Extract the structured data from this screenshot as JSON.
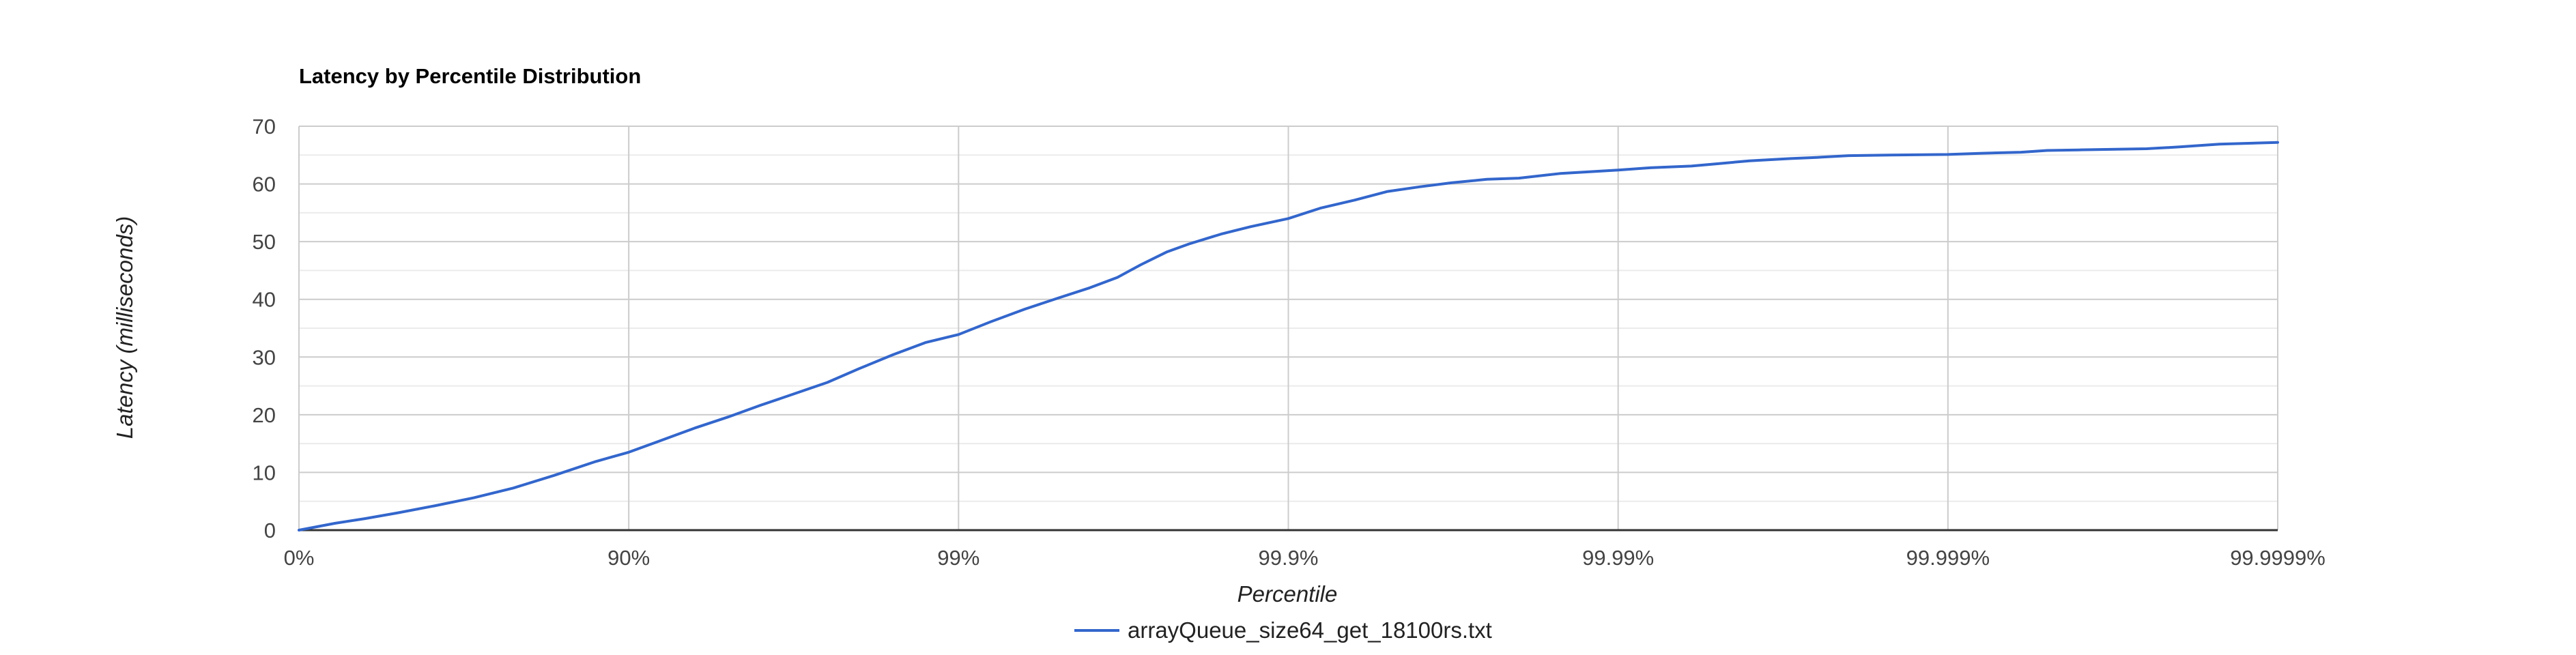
{
  "chart_data": {
    "type": "line",
    "title": "Latency by Percentile Distribution",
    "xlabel": "Percentile",
    "ylabel": "Latency (milliseconds)",
    "x_scale": "log-percentile (each tick = one more nine)",
    "x_ticks": [
      "0%",
      "90%",
      "99%",
      "99.9%",
      "99.99%",
      "99.999%",
      "99.9999%"
    ],
    "y_ticks": [
      "0",
      "10",
      "20",
      "30",
      "40",
      "50",
      "60",
      "70"
    ],
    "ylim": [
      0,
      70
    ],
    "grid": true,
    "minor_gridlines": true,
    "legend_position": "bottom",
    "series": [
      {
        "name": "arrayQueue_size64_get_18100rs.txt",
        "color": "#3366cc",
        "x": [
          0,
          22.38,
          36.9,
          49.88,
          61.1,
          70.49,
          77.61,
          83.18,
          87.41,
          90.0,
          91.8,
          93.7,
          95.0,
          96.0,
          96.84,
          97.5,
          98.0,
          98.42,
          98.74,
          99.0,
          99.2,
          99.37,
          99.5,
          99.6,
          99.67,
          99.72,
          99.766,
          99.8,
          99.84,
          99.87,
          99.9,
          99.92,
          99.937,
          99.95,
          99.96,
          99.968,
          99.975,
          99.98,
          99.985,
          99.99,
          99.992,
          99.994,
          99.995,
          99.996,
          99.997,
          99.9975,
          99.998,
          99.9985,
          99.999,
          99.9992,
          99.9994,
          99.9995,
          99.9996,
          99.99975,
          99.9998,
          99.99985,
          99.9999
        ],
        "y": [
          0,
          1.2,
          2.0,
          3.0,
          4.2,
          5.6,
          7.3,
          9.5,
          11.9,
          13.5,
          15.3,
          17.7,
          19.6,
          21.6,
          23.6,
          25.6,
          28.0,
          30.4,
          32.5,
          33.9,
          36.1,
          38.3,
          40.2,
          42.0,
          43.8,
          46.0,
          48.2,
          49.6,
          51.3,
          52.6,
          54.0,
          55.8,
          57.2,
          58.7,
          59.5,
          60.2,
          60.8,
          61.0,
          61.8,
          62.4,
          62.8,
          63.1,
          63.5,
          64.0,
          64.4,
          64.6,
          64.9,
          65.0,
          65.1,
          65.3,
          65.5,
          65.8,
          65.9,
          66.1,
          66.4,
          66.9,
          67.2
        ]
      }
    ]
  }
}
